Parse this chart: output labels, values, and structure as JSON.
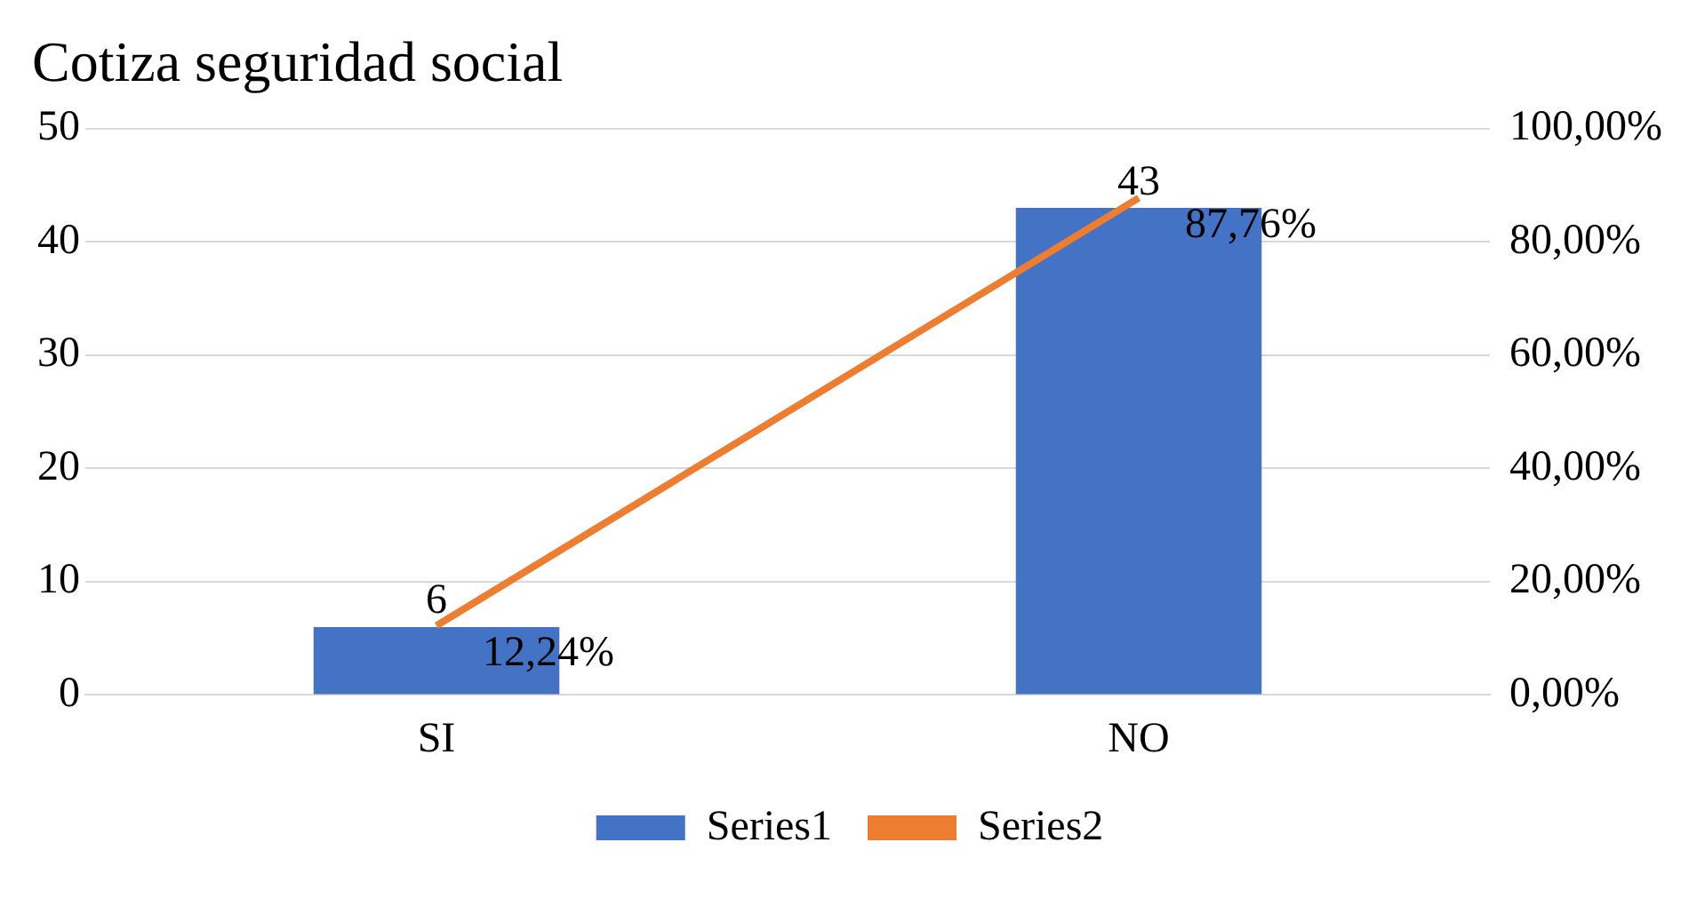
{
  "chart_data": {
    "type": "bar",
    "title": "Cotiza seguridad social",
    "categories": [
      "SI",
      "NO"
    ],
    "series": [
      {
        "name": "Series1",
        "color": "#4472c4",
        "values": [
          6,
          43
        ],
        "value_labels": [
          "6",
          "43"
        ]
      },
      {
        "name": "Series2",
        "type": "line",
        "axis": "y2",
        "color": "#ed7d31",
        "values": [
          12.24,
          87.76
        ],
        "value_labels": [
          "12,24%",
          "87,76%"
        ],
        "marker": "none"
      }
    ],
    "ylim": [
      0,
      50
    ],
    "yticks": [
      0,
      10,
      20,
      30,
      40,
      50
    ],
    "y2lim": [
      0,
      100
    ],
    "y2ticks": [
      {
        "value": 0,
        "label": "0,00%"
      },
      {
        "value": 20,
        "label": "20,00%"
      },
      {
        "value": 40,
        "label": "40,00%"
      },
      {
        "value": 60,
        "label": "60,00%"
      },
      {
        "value": 80,
        "label": "80,00%"
      },
      {
        "value": 100,
        "label": "100,00%"
      }
    ],
    "grid": "y",
    "legend": "bottom"
  }
}
